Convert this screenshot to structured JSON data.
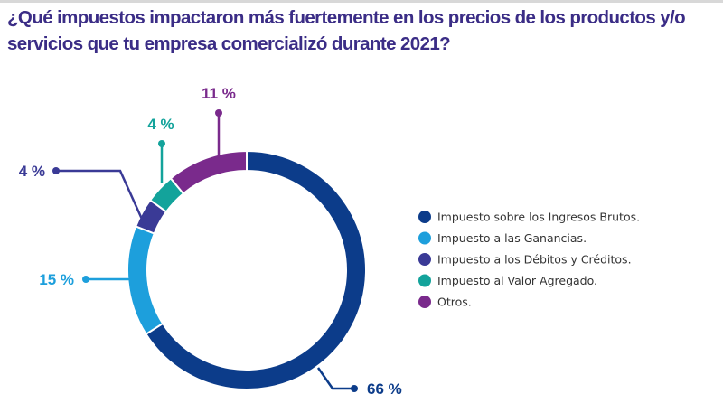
{
  "chart_data": {
    "type": "pie",
    "donut": true,
    "title": "¿Qué impuestos impactaron más fuertemente en los precios de los productos y/o servicios que tu empresa comercializó durante 2021?",
    "categories": [
      "Impuesto sobre los Ingresos Brutos.",
      "Impuesto a las Ganancias.",
      "Impuesto a los Débitos y Créditos.",
      "Impuesto al Valor Agregado.",
      "Otros."
    ],
    "values": [
      66,
      15,
      4,
      4,
      11
    ],
    "data_labels": [
      "66 %",
      "15 %",
      "4 %",
      "4 %",
      "11 %"
    ],
    "colors": [
      "#0c3c8a",
      "#1d9fdc",
      "#3a3a96",
      "#13a39b",
      "#7a2a8c"
    ],
    "legend_position": "right"
  }
}
